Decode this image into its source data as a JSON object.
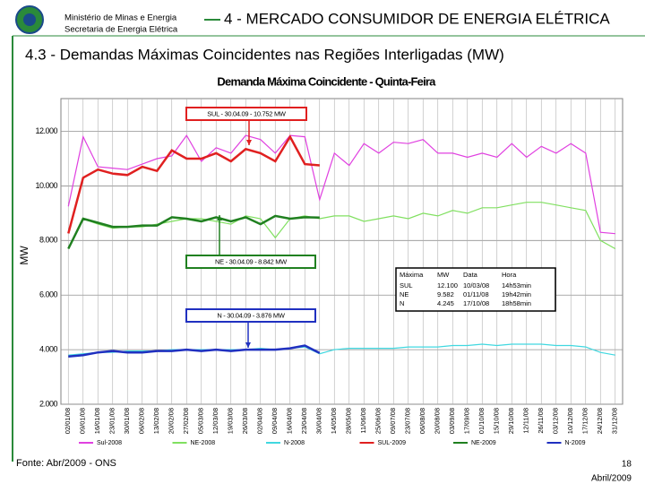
{
  "header": {
    "ministry": "Ministério de Minas e Energia",
    "secretariat": "Secretaria de Energia Elétrica",
    "section": "4 - MERCADO CONSUMIDOR DE ENERGIA ELÉTRICA",
    "subtitle": "4.3 - Demandas Máximas Coincidentes nas Regiões Interligadas (MW)"
  },
  "chart_data": {
    "type": "line",
    "title": "Demanda Máxima Coincidente - Quinta-Feira",
    "y_label": "MW",
    "categories": [
      "02/01/08",
      "09/01/08",
      "16/01/08",
      "23/01/08",
      "30/01/08",
      "06/02/08",
      "13/02/08",
      "20/02/08",
      "27/02/08",
      "05/03/08",
      "12/03/08",
      "19/03/08",
      "26/03/08",
      "02/04/08",
      "09/04/08",
      "16/04/08",
      "23/04/08",
      "30/04/08",
      "14/05/08",
      "28/05/08",
      "11/06/08",
      "25/06/08",
      "09/07/08",
      "23/07/08",
      "06/08/08",
      "20/08/08",
      "03/09/08",
      "17/09/08",
      "01/10/08",
      "15/10/08",
      "29/10/08",
      "12/11/08",
      "26/11/08",
      "03/12/08",
      "10/12/08",
      "17/12/08",
      "24/12/08",
      "31/12/08"
    ],
    "series": [
      {
        "name": "Sul-2008",
        "color": "#e040e0",
        "values": [
          9250,
          11800,
          10700,
          10650,
          10600,
          10800,
          11000,
          11100,
          11850,
          10900,
          11400,
          11200,
          11850,
          11700,
          11200,
          11850,
          11800,
          9500,
          11200,
          10750,
          11550,
          11200,
          11600,
          11550,
          11700,
          11200,
          11200,
          11050,
          11200,
          11050,
          11550,
          11050,
          11450,
          11200,
          11550,
          11200,
          8300,
          8250
        ]
      },
      {
        "name": "NE-2008",
        "color": "#80e060",
        "values": [
          7700,
          8800,
          8600,
          8450,
          8500,
          8500,
          8600,
          8700,
          8800,
          8800,
          8700,
          8600,
          8900,
          8800,
          8100,
          8800,
          8900,
          8800,
          8900,
          8900,
          8700,
          8800,
          8900,
          8800,
          9000,
          8900,
          9100,
          9000,
          9200,
          9200,
          9300,
          9400,
          9400,
          9300,
          9200,
          9100,
          8000,
          7700
        ]
      },
      {
        "name": "N-2008",
        "color": "#40d8e0",
        "values": [
          3800,
          3850,
          3900,
          3900,
          3950,
          3950,
          3950,
          4000,
          4000,
          4000,
          4000,
          4000,
          4000,
          4050,
          4000,
          4050,
          4100,
          3850,
          4000,
          4050,
          4050,
          4050,
          4050,
          4100,
          4100,
          4100,
          4150,
          4150,
          4200,
          4150,
          4200,
          4200,
          4200,
          4150,
          4150,
          4100,
          3900,
          3800
        ]
      },
      {
        "name": "SUL-2009",
        "color": "#e02020",
        "values": [
          8260,
          10300,
          10600,
          10450,
          10400,
          10700,
          10550,
          11300,
          11000,
          11000,
          11200,
          10900,
          11350,
          11200,
          10900,
          11800,
          10800,
          10752,
          null,
          null,
          null,
          null,
          null,
          null,
          null,
          null,
          null,
          null,
          null,
          null,
          null,
          null,
          null,
          null,
          null,
          null,
          null,
          null
        ]
      },
      {
        "name": "NE-2009",
        "color": "#208020",
        "values": [
          7700,
          8800,
          8650,
          8500,
          8500,
          8550,
          8550,
          8850,
          8800,
          8700,
          8850,
          8700,
          8850,
          8600,
          8900,
          8800,
          8850,
          8842,
          null,
          null,
          null,
          null,
          null,
          null,
          null,
          null,
          null,
          null,
          null,
          null,
          null,
          null,
          null,
          null,
          null,
          null,
          null,
          null
        ]
      },
      {
        "name": "N-2009",
        "color": "#2030c0",
        "values": [
          3750,
          3800,
          3900,
          3950,
          3900,
          3900,
          3950,
          3950,
          4000,
          3950,
          4000,
          3950,
          4000,
          4000,
          4000,
          4050,
          4150,
          3876,
          null,
          null,
          null,
          null,
          null,
          null,
          null,
          null,
          null,
          null,
          null,
          null,
          null,
          null,
          null,
          null,
          null,
          null,
          null,
          null
        ]
      }
    ],
    "ylim": [
      2000,
      13200
    ],
    "yticks": [
      {
        "value": 2000,
        "label": "2.000"
      },
      {
        "value": 4000,
        "label": "4.000"
      },
      {
        "value": 6000,
        "label": "6.000"
      },
      {
        "value": 8000,
        "label": "8.000"
      },
      {
        "value": 10000,
        "label": "10.000"
      },
      {
        "value": 12000,
        "label": "12.000"
      }
    ],
    "grid": true,
    "legend": "bottom",
    "annotations": [
      "SUL - 30.04.09 - 10.752 MW",
      "NE - 30.04.09 - 8.842 MW",
      "N - 30.04.09 - 3.876 MW"
    ],
    "table": {
      "header": [
        "Máxima",
        "MW",
        "Data",
        "Hora"
      ],
      "rows": [
        [
          "SUL",
          "12.100",
          "10/03/08",
          "14h53min"
        ],
        [
          "NE",
          "9.582",
          "01/11/08",
          "19h42min"
        ],
        [
          "N",
          "4.245",
          "17/10/08",
          "18h58min"
        ]
      ]
    }
  },
  "footer": {
    "source": "Fonte: Abr/2009 - ONS",
    "page": "18",
    "date": "Abril/2009"
  }
}
